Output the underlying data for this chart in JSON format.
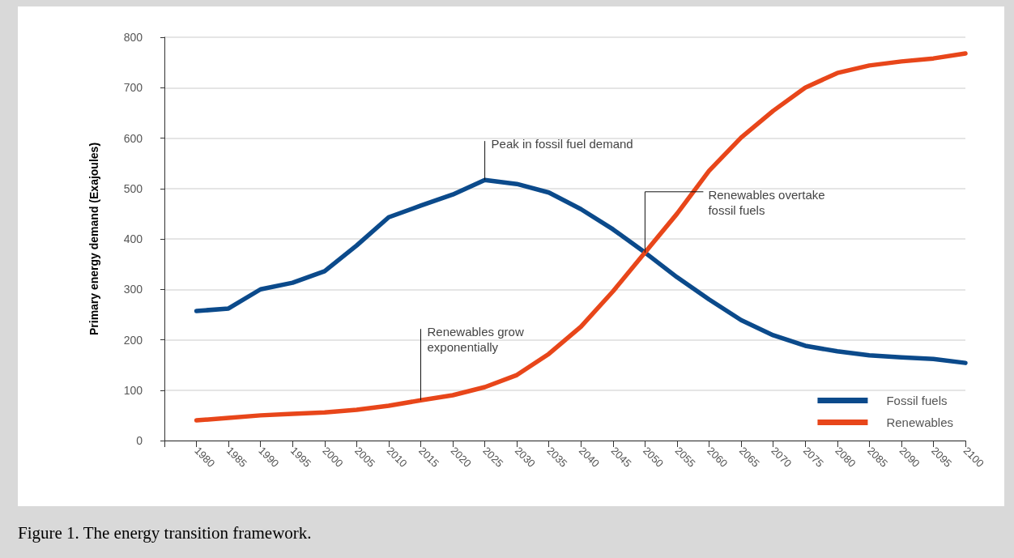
{
  "chart_data": {
    "type": "line",
    "ylabel": "Primary energy demand (Exajoules)",
    "x": [
      1980,
      1985,
      1990,
      1995,
      2000,
      2005,
      2010,
      2015,
      2020,
      2025,
      2030,
      2035,
      2040,
      2045,
      2050,
      2055,
      2060,
      2065,
      2070,
      2075,
      2080,
      2085,
      2090,
      2095,
      2100
    ],
    "series": [
      {
        "name": "Fossil fuels",
        "color": "#0b4a8b",
        "values": [
          257,
          262,
          300,
          313,
          336,
          387,
          443,
          466,
          488,
          517,
          509,
          492,
          459,
          419,
          373,
          324,
          280,
          239,
          209,
          188,
          177,
          169,
          165,
          162,
          154
        ]
      },
      {
        "name": "Renewables",
        "color": "#e8461a",
        "values": [
          40,
          45,
          50,
          53,
          56,
          61,
          69,
          80,
          90,
          106,
          130,
          172,
          226,
          296,
          373,
          450,
          535,
          601,
          654,
          700,
          729,
          744,
          752,
          758,
          768
        ]
      }
    ],
    "xlim": [
      1975,
      2100
    ],
    "xticks": [
      {
        "value": 1975,
        "label": null
      },
      1980,
      1985,
      1990,
      1995,
      2000,
      2005,
      2010,
      2015,
      2020,
      2025,
      2030,
      2035,
      2040,
      2045,
      2050,
      2055,
      2060,
      2065,
      2070,
      2075,
      2080,
      2085,
      2090,
      2095,
      2100
    ],
    "ylim": [
      0,
      800
    ],
    "yticks": [
      0,
      100,
      200,
      300,
      400,
      500,
      600,
      700,
      800
    ],
    "grid": "y",
    "legend": "bottom right",
    "marker": "none",
    "line_style": "solid",
    "annotations": [
      {
        "text": "Peak in fossil fuel demand",
        "x": 2025,
        "y": 517
      },
      {
        "text": "Renewables grow\nexponentially",
        "x": 2015,
        "y": 80
      },
      {
        "text": "Renewables overtake\nfossil fuels",
        "x": 2050,
        "y": 373
      },
      "Figure 1. The energy transition framework."
    ]
  }
}
